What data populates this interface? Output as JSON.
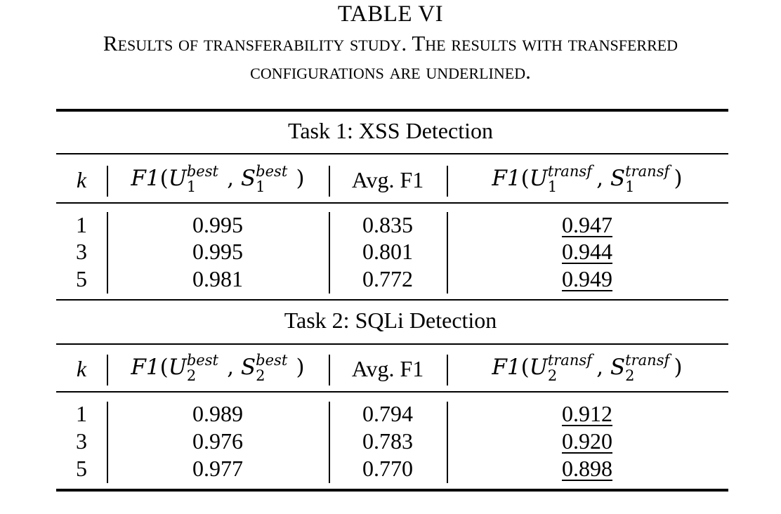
{
  "caption": {
    "title": "TABLE VI",
    "line1": "Results of transferability study. The results with transferred",
    "line2": "configurations are underlined."
  },
  "tasks": [
    {
      "title": "Task 1: XSS Detection",
      "headers": {
        "k": "k",
        "best": "F1(U1^best, S1^best)",
        "avg": "Avg. F1",
        "transf": "F1(U1^transf, S1^transf)"
      },
      "rows": [
        {
          "k": "1",
          "best": "0.995",
          "avg": "0.835",
          "transf": "0.947"
        },
        {
          "k": "3",
          "best": "0.995",
          "avg": "0.801",
          "transf": "0.944"
        },
        {
          "k": "5",
          "best": "0.981",
          "avg": "0.772",
          "transf": "0.949"
        }
      ]
    },
    {
      "title": "Task 2: SQLi Detection",
      "headers": {
        "k": "k",
        "best": "F1(U2^best, S2^best)",
        "avg": "Avg. F1",
        "transf": "F1(U2^transf, S2^transf)"
      },
      "rows": [
        {
          "k": "1",
          "best": "0.989",
          "avg": "0.794",
          "transf": "0.912"
        },
        {
          "k": "3",
          "best": "0.976",
          "avg": "0.783",
          "transf": "0.920"
        },
        {
          "k": "5",
          "best": "0.977",
          "avg": "0.770",
          "transf": "0.898"
        }
      ]
    }
  ],
  "math_parts": {
    "f1": "F1",
    "u": "U",
    "s": "S",
    "best": "best",
    "transf": "transf",
    "task1_sub": "1",
    "task2_sub": "2"
  }
}
